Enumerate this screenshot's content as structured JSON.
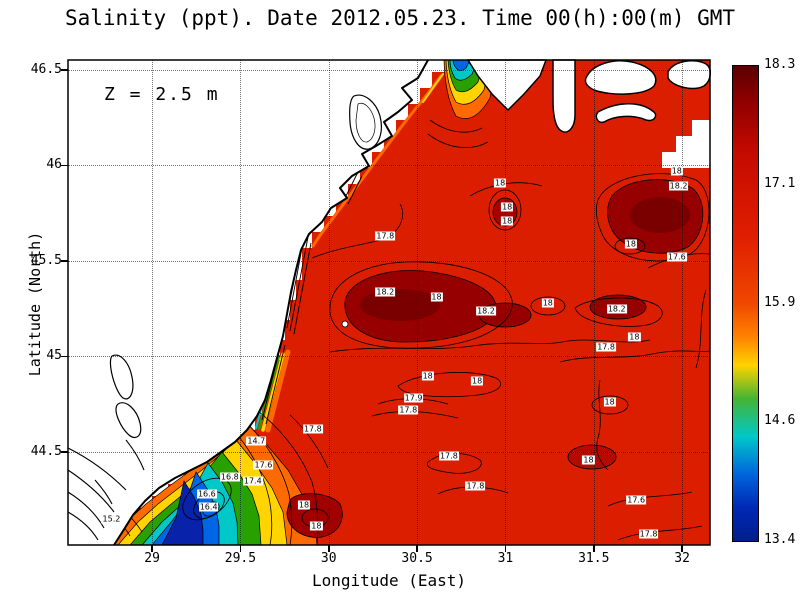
{
  "title": "Salinity (ppt). Date 2012.05.23. Time 00(h):00(m) GMT",
  "chart_data": {
    "type": "heatmap",
    "subtype": "filled-contour-map",
    "title": "Salinity (ppt). Date 2012.05.23. Time 00(h):00(m) GMT",
    "annotation": "Z = 2.5 m",
    "variable": "Salinity (ppt)",
    "date": "2012.05.23",
    "time": "00(h):00(m) GMT",
    "depth": "2.5 m",
    "xlabel": "Longitude (East)",
    "ylabel": "Latitude (North)",
    "xticks": [
      29,
      29.5,
      30,
      30.5,
      31,
      31.5,
      32
    ],
    "yticks": [
      44.5,
      45,
      45.5,
      46,
      46.5
    ],
    "xlim": [
      28.524,
      32.158
    ],
    "ylim": [
      44.013,
      46.552
    ],
    "grid": "dotted",
    "sea_base_color": "#dc1e00",
    "colorbar": {
      "min": 13.4,
      "max": 18.3,
      "tick_labels": [
        "18.3",
        "17.1",
        "15.9",
        "14.6",
        "13.4"
      ],
      "gradient": [
        {
          "pos": 0.0,
          "color": "#5a0000"
        },
        {
          "pos": 0.07,
          "color": "#8c0000"
        },
        {
          "pos": 0.18,
          "color": "#c40a00"
        },
        {
          "pos": 0.36,
          "color": "#e01e00"
        },
        {
          "pos": 0.5,
          "color": "#f04800"
        },
        {
          "pos": 0.57,
          "color": "#ff8200"
        },
        {
          "pos": 0.63,
          "color": "#ffd200"
        },
        {
          "pos": 0.7,
          "color": "#46b432"
        },
        {
          "pos": 0.78,
          "color": "#00c8c8"
        },
        {
          "pos": 0.86,
          "color": "#0064dc"
        },
        {
          "pos": 0.93,
          "color": "#0028b4"
        },
        {
          "pos": 1.0,
          "color": "#001e8c"
        }
      ]
    },
    "contour_labels": [
      {
        "lon": 30.97,
        "lat": 45.91,
        "value": "18"
      },
      {
        "lon": 31.01,
        "lat": 45.78,
        "value": "18"
      },
      {
        "lon": 31.01,
        "lat": 45.71,
        "value": "18"
      },
      {
        "lon": 31.97,
        "lat": 45.97,
        "value": "18"
      },
      {
        "lon": 31.98,
        "lat": 45.89,
        "value": "18.2"
      },
      {
        "lon": 30.32,
        "lat": 45.63,
        "value": "17.8"
      },
      {
        "lon": 31.71,
        "lat": 45.59,
        "value": "18"
      },
      {
        "lon": 31.97,
        "lat": 45.52,
        "value": "17.6"
      },
      {
        "lon": 30.32,
        "lat": 45.34,
        "value": "18.2"
      },
      {
        "lon": 30.61,
        "lat": 45.31,
        "value": "18"
      },
      {
        "lon": 30.89,
        "lat": 45.24,
        "value": "18.2"
      },
      {
        "lon": 31.24,
        "lat": 45.28,
        "value": "18"
      },
      {
        "lon": 31.63,
        "lat": 45.25,
        "value": "18.2"
      },
      {
        "lon": 31.73,
        "lat": 45.1,
        "value": "18"
      },
      {
        "lon": 31.57,
        "lat": 45.05,
        "value": "17.8"
      },
      {
        "lon": 30.56,
        "lat": 44.9,
        "value": "18"
      },
      {
        "lon": 30.84,
        "lat": 44.87,
        "value": "18"
      },
      {
        "lon": 30.48,
        "lat": 44.78,
        "value": "17.9"
      },
      {
        "lon": 30.45,
        "lat": 44.72,
        "value": "17.8"
      },
      {
        "lon": 31.59,
        "lat": 44.76,
        "value": "18"
      },
      {
        "lon": 29.91,
        "lat": 44.62,
        "value": "17.8"
      },
      {
        "lon": 29.59,
        "lat": 44.56,
        "value": "14.7"
      },
      {
        "lon": 29.63,
        "lat": 44.43,
        "value": "17.6"
      },
      {
        "lon": 30.68,
        "lat": 44.48,
        "value": "17.8"
      },
      {
        "lon": 31.47,
        "lat": 44.46,
        "value": "18"
      },
      {
        "lon": 29.57,
        "lat": 44.35,
        "value": "17.4"
      },
      {
        "lon": 29.44,
        "lat": 44.37,
        "value": "16.8"
      },
      {
        "lon": 29.31,
        "lat": 44.28,
        "value": "16.6"
      },
      {
        "lon": 29.32,
        "lat": 44.21,
        "value": "16.4"
      },
      {
        "lon": 30.83,
        "lat": 44.32,
        "value": "17.8"
      },
      {
        "lon": 31.74,
        "lat": 44.25,
        "value": "17.6"
      },
      {
        "lon": 29.86,
        "lat": 44.22,
        "value": "18"
      },
      {
        "lon": 28.77,
        "lat": 44.15,
        "value": "15.2"
      },
      {
        "lon": 29.93,
        "lat": 44.11,
        "value": "18"
      },
      {
        "lon": 31.81,
        "lat": 44.07,
        "value": "17.8"
      }
    ]
  }
}
